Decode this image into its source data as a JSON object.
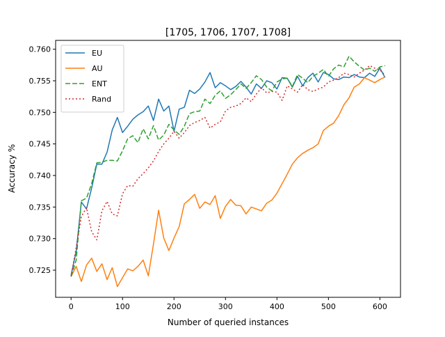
{
  "chart_data": {
    "type": "line",
    "title": "[1705, 1706, 1707, 1708]",
    "xlabel": "Number of queried instances",
    "ylabel": "Accuracy %",
    "xlim": [
      -30,
      640
    ],
    "ylim": [
      0.7207,
      0.7614
    ],
    "xticks": [
      0,
      100,
      200,
      300,
      400,
      500,
      600
    ],
    "yticks": [
      0.725,
      0.73,
      0.735,
      0.74,
      0.745,
      0.75,
      0.755,
      0.76
    ],
    "ytick_labels": [
      "0.725",
      "0.730",
      "0.735",
      "0.740",
      "0.745",
      "0.750",
      "0.755",
      "0.760"
    ],
    "grid": false,
    "legend_position": "top-left",
    "series": [
      {
        "name": "EU",
        "color": "#1f77b4",
        "dash": "solid",
        "x": [
          0,
          10,
          20,
          30,
          40,
          50,
          60,
          70,
          80,
          90,
          100,
          110,
          120,
          130,
          140,
          150,
          160,
          170,
          180,
          190,
          200,
          210,
          220,
          230,
          240,
          250,
          260,
          270,
          280,
          290,
          300,
          310,
          320,
          330,
          340,
          350,
          360,
          370,
          380,
          390,
          400,
          410,
          420,
          430,
          440,
          450,
          460,
          470,
          480,
          490,
          500,
          510,
          520,
          530,
          540,
          550,
          560,
          570,
          580,
          590,
          600,
          610
        ],
        "y": [
          0.7242,
          0.728,
          0.7358,
          0.7347,
          0.738,
          0.7418,
          0.7418,
          0.7437,
          0.7472,
          0.7492,
          0.7468,
          0.7478,
          0.7489,
          0.7496,
          0.7501,
          0.751,
          0.7487,
          0.7521,
          0.7502,
          0.751,
          0.747,
          0.7505,
          0.7508,
          0.7535,
          0.753,
          0.7537,
          0.7548,
          0.7563,
          0.7539,
          0.7547,
          0.7542,
          0.7536,
          0.7541,
          0.7549,
          0.754,
          0.7529,
          0.7545,
          0.7538,
          0.755,
          0.7547,
          0.7537,
          0.7555,
          0.7554,
          0.754,
          0.7557,
          0.7542,
          0.7555,
          0.7562,
          0.7548,
          0.7563,
          0.756,
          0.7553,
          0.7552,
          0.7556,
          0.7555,
          0.756,
          0.7556,
          0.7555,
          0.7562,
          0.7557,
          0.757,
          0.7555
        ]
      },
      {
        "name": "AU",
        "color": "#ff7f0e",
        "dash": "solid",
        "x": [
          0,
          10,
          20,
          30,
          40,
          50,
          60,
          70,
          80,
          90,
          100,
          110,
          120,
          130,
          140,
          150,
          160,
          170,
          180,
          190,
          200,
          210,
          220,
          230,
          240,
          250,
          260,
          270,
          280,
          290,
          300,
          310,
          320,
          330,
          340,
          350,
          360,
          370,
          380,
          390,
          400,
          410,
          420,
          430,
          440,
          450,
          460,
          470,
          480,
          490,
          500,
          510,
          520,
          530,
          540,
          550,
          560,
          570,
          580,
          590,
          600,
          610
        ],
        "y": [
          0.724,
          0.7256,
          0.7232,
          0.7258,
          0.7269,
          0.7248,
          0.726,
          0.7235,
          0.7254,
          0.7224,
          0.7238,
          0.7252,
          0.7249,
          0.7256,
          0.7266,
          0.7241,
          0.7291,
          0.7345,
          0.7301,
          0.7281,
          0.7301,
          0.7319,
          0.7355,
          0.7362,
          0.737,
          0.7348,
          0.7358,
          0.7354,
          0.7368,
          0.7332,
          0.7351,
          0.7362,
          0.7353,
          0.7352,
          0.7339,
          0.735,
          0.7347,
          0.7344,
          0.7356,
          0.7361,
          0.7372,
          0.7387,
          0.7402,
          0.7418,
          0.7428,
          0.7435,
          0.744,
          0.7444,
          0.745,
          0.7471,
          0.7478,
          0.7483,
          0.7495,
          0.7512,
          0.7523,
          0.754,
          0.7545,
          0.7555,
          0.7551,
          0.7547,
          0.7552,
          0.7556
        ]
      },
      {
        "name": "ENT",
        "color": "#2ca02c",
        "dash": "dashed",
        "x": [
          0,
          10,
          20,
          30,
          40,
          50,
          60,
          70,
          80,
          90,
          100,
          110,
          120,
          130,
          140,
          150,
          160,
          170,
          180,
          190,
          200,
          210,
          220,
          230,
          240,
          250,
          260,
          270,
          280,
          290,
          300,
          310,
          320,
          330,
          340,
          350,
          360,
          370,
          380,
          390,
          400,
          410,
          420,
          430,
          440,
          450,
          460,
          470,
          480,
          490,
          500,
          510,
          520,
          530,
          540,
          550,
          560,
          570,
          580,
          590,
          600,
          610
        ],
        "y": [
          0.724,
          0.7266,
          0.736,
          0.7364,
          0.7387,
          0.742,
          0.7421,
          0.7424,
          0.7424,
          0.7423,
          0.7439,
          0.7458,
          0.7463,
          0.7452,
          0.7474,
          0.7458,
          0.7479,
          0.7456,
          0.7464,
          0.7481,
          0.7472,
          0.7465,
          0.7478,
          0.7498,
          0.7501,
          0.7502,
          0.7521,
          0.7514,
          0.7527,
          0.7534,
          0.7522,
          0.7528,
          0.7536,
          0.7545,
          0.7538,
          0.7547,
          0.7558,
          0.7552,
          0.754,
          0.7534,
          0.7548,
          0.7553,
          0.7554,
          0.7541,
          0.756,
          0.7554,
          0.7547,
          0.7557,
          0.7562,
          0.7568,
          0.7557,
          0.7569,
          0.7575,
          0.7572,
          0.7589,
          0.758,
          0.7573,
          0.7567,
          0.757,
          0.7565,
          0.7572,
          0.7574
        ]
      },
      {
        "name": "Rand",
        "color": "#d62728",
        "dash": "dotted",
        "x": [
          0,
          10,
          20,
          30,
          40,
          50,
          60,
          70,
          80,
          90,
          100,
          110,
          120,
          130,
          140,
          150,
          160,
          170,
          180,
          190,
          200,
          210,
          220,
          230,
          240,
          250,
          260,
          270,
          280,
          290,
          300,
          310,
          320,
          330,
          340,
          350,
          360,
          370,
          380,
          390,
          400,
          410,
          420,
          430,
          440,
          450,
          460,
          470,
          480,
          490,
          500,
          510,
          520,
          530,
          540,
          550,
          560,
          570,
          580,
          590,
          600,
          610
        ],
        "y": [
          0.724,
          0.7286,
          0.7335,
          0.7349,
          0.7311,
          0.7298,
          0.7344,
          0.7359,
          0.7339,
          0.7336,
          0.7371,
          0.7384,
          0.7383,
          0.7395,
          0.7403,
          0.7412,
          0.7423,
          0.7438,
          0.745,
          0.7459,
          0.747,
          0.7459,
          0.7468,
          0.7479,
          0.7484,
          0.7487,
          0.7492,
          0.7475,
          0.7481,
          0.7485,
          0.7502,
          0.7508,
          0.751,
          0.7514,
          0.7523,
          0.7517,
          0.7529,
          0.7539,
          0.7531,
          0.7533,
          0.7532,
          0.7519,
          0.7542,
          0.7537,
          0.7532,
          0.7544,
          0.7536,
          0.7533,
          0.7537,
          0.754,
          0.7548,
          0.7551,
          0.7555,
          0.7562,
          0.756,
          0.7556,
          0.7562,
          0.7567,
          0.7574,
          0.757,
          0.7567,
          0.7559
        ]
      }
    ]
  }
}
